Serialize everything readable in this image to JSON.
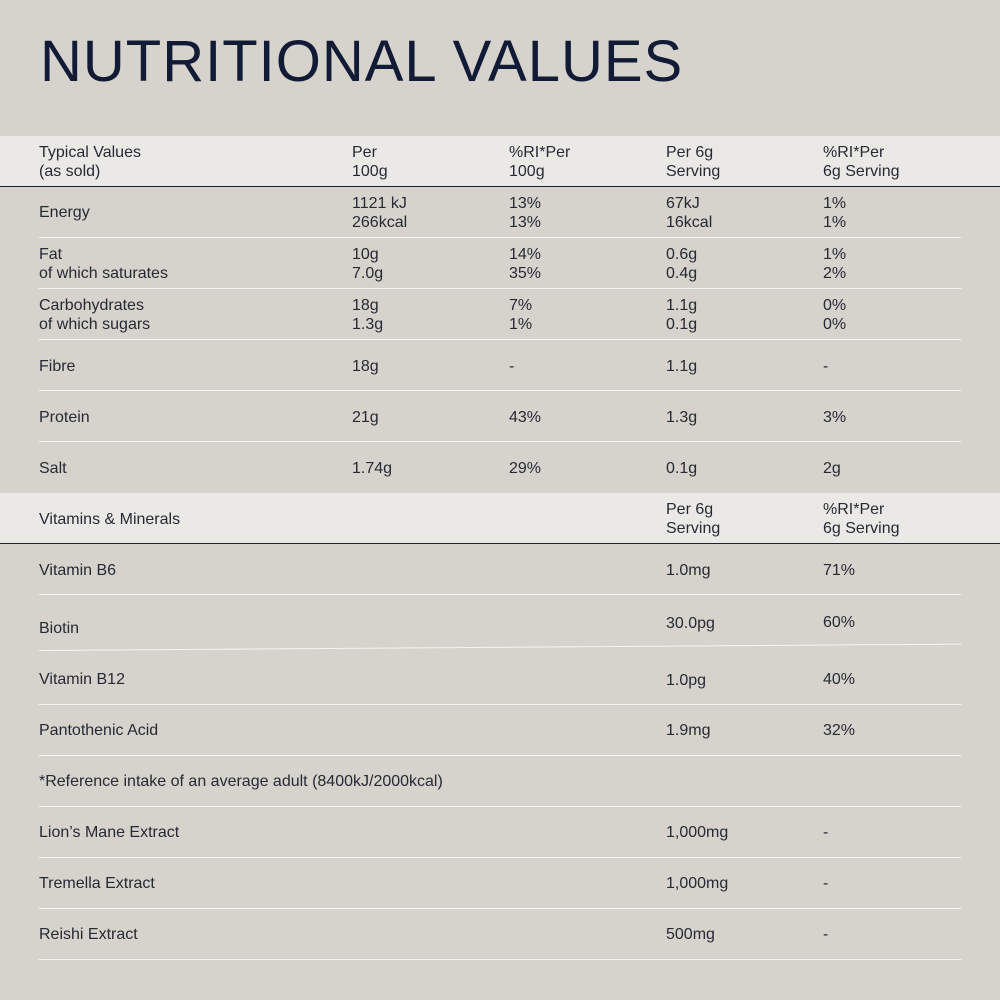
{
  "title": "NUTRITIONAL VALUES",
  "colors": {
    "background": "#d6d2cc",
    "header_band": "#ebe9e5",
    "text": "#262a35",
    "title": "#111b35"
  },
  "typical_header": {
    "col1": "Typical Values\n(as sold)",
    "col2": "Per\n100g",
    "col3": "%RI*Per\n100g",
    "col4": "Per 6g\nServing",
    "col5": "%RI*Per\n6g Serving"
  },
  "typical_rows": [
    {
      "name": "Energy",
      "per100": "1121 kJ\n266kcal",
      "ri100": "13%\n13%",
      "per6": "67kJ\n16kcal",
      "ri6": "1%\n1%"
    },
    {
      "name": "Fat\nof which saturates",
      "per100": "10g\n7.0g",
      "ri100": "14%\n35%",
      "per6": "0.6g\n0.4g",
      "ri6": "1%\n2%"
    },
    {
      "name": "Carbohydrates\nof which sugars",
      "per100": "18g\n1.3g",
      "ri100": "7%\n1%",
      "per6": "1.1g\n0.1g",
      "ri6": "0%\n0%"
    },
    {
      "name": "Fibre",
      "per100": "18g",
      "ri100": "-",
      "per6": "1.1g",
      "ri6": "-"
    },
    {
      "name": "Protein",
      "per100": "21g",
      "ri100": "43%",
      "per6": "1.3g",
      "ri6": "3%"
    },
    {
      "name": "Salt",
      "per100": "1.74g",
      "ri100": "29%",
      "per6": "0.1g",
      "ri6": "2g"
    }
  ],
  "vitamins_header": {
    "col1": "Vitamins & Minerals",
    "col4": "Per 6g\nServing",
    "col5": "%RI*Per\n6g Serving"
  },
  "vitamin_rows": [
    {
      "name": "Vitamin B6",
      "per6": "1.0mg",
      "ri6": "71%"
    },
    {
      "name": "Biotin",
      "per6": "30.0pg",
      "ri6": "60%"
    },
    {
      "name": "Vitamin B12",
      "per6": "1.0pg",
      "ri6": "40%"
    },
    {
      "name": "Pantothenic Acid",
      "per6": "1.9mg",
      "ri6": "32%"
    }
  ],
  "footnote": "*Reference intake of an average adult (8400kJ/2000kcal)",
  "extract_rows": [
    {
      "name": "Lion’s Mane Extract",
      "per6": "1,000mg",
      "ri6": "-"
    },
    {
      "name": "Tremella Extract",
      "per6": "1,000mg",
      "ri6": "-"
    },
    {
      "name": "Reishi Extract",
      "per6": "500mg",
      "ri6": "-"
    }
  ]
}
